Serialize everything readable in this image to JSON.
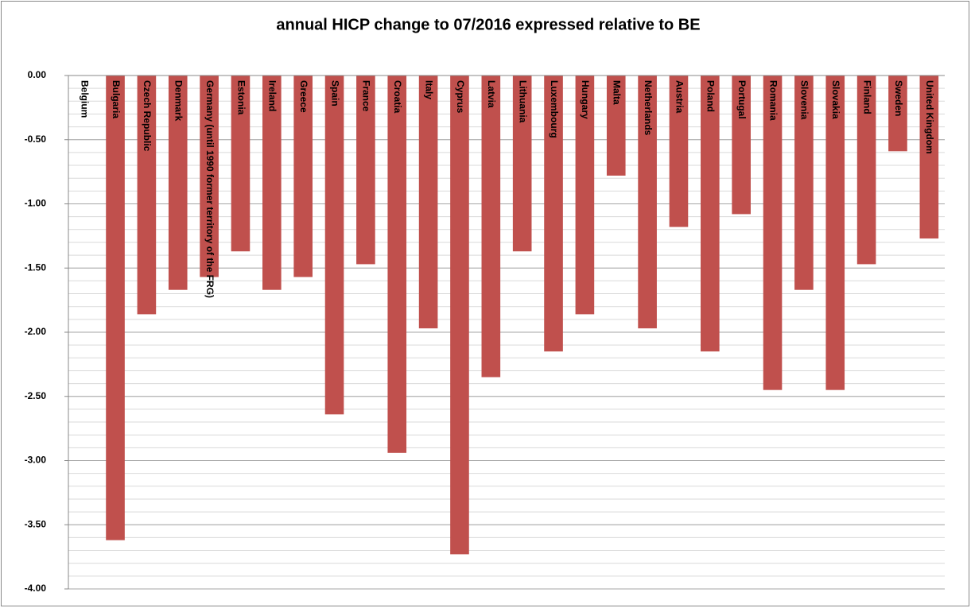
{
  "chart_data": {
    "type": "bar",
    "title": "annual HICP change to 07/2016 expressed relative to BE",
    "categories": [
      "Belgium",
      "Bulgaria",
      "Czech Republic",
      "Denmark",
      "Germany (until 1990 former territory of the FRG)",
      "Estonia",
      "Ireland",
      "Greece",
      "Spain",
      "France",
      "Croatia",
      "Italy",
      "Cyprus",
      "Latvia",
      "Lithuania",
      "Luxembourg",
      "Hungary",
      "Malta",
      "Netherlands",
      "Austria",
      "Poland",
      "Portugal",
      "Romania",
      "Slovenia",
      "Slovakia",
      "Finland",
      "Sweden",
      "United Kingdom"
    ],
    "values": [
      0,
      -3.62,
      -1.86,
      -1.67,
      -1.57,
      -1.37,
      -1.67,
      -1.57,
      -2.64,
      -1.47,
      -2.94,
      -1.97,
      -3.73,
      -2.35,
      -1.37,
      -2.15,
      -1.86,
      -0.78,
      -1.97,
      -1.18,
      -2.15,
      -1.08,
      -2.45,
      -1.67,
      -2.45,
      -1.47,
      -0.59,
      -1.27
    ],
    "color": "#c0504d",
    "ylim": [
      -4,
      0
    ],
    "yticks": [
      {
        "value": 0,
        "label": "0.00"
      },
      {
        "value": -0.5,
        "label": "-0.50"
      },
      {
        "value": -1,
        "label": "-1.00"
      },
      {
        "value": -1.5,
        "label": "-1.50"
      },
      {
        "value": -2,
        "label": "-2.00"
      },
      {
        "value": -2.5,
        "label": "-2.50"
      },
      {
        "value": -3,
        "label": "-3.00"
      },
      {
        "value": -3.5,
        "label": "-3.50"
      },
      {
        "value": -4,
        "label": "-4.00"
      }
    ],
    "grid": true,
    "minor_grid_step": 0.1
  }
}
